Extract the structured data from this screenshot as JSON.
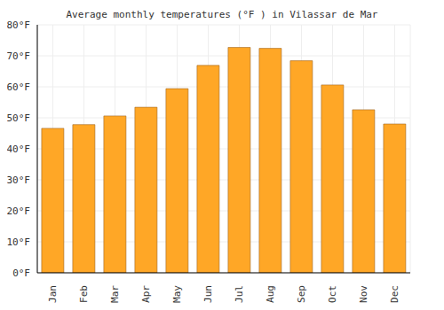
{
  "chart_data": {
    "type": "bar",
    "title": "Average monthly temperatures (°F ) in Vilassar de Mar",
    "categories": [
      "Jan",
      "Feb",
      "Mar",
      "Apr",
      "May",
      "Jun",
      "Jul",
      "Aug",
      "Sep",
      "Oct",
      "Nov",
      "Dec"
    ],
    "values": [
      46.6,
      47.8,
      50.6,
      53.4,
      59.4,
      66.9,
      72.7,
      72.4,
      68.4,
      60.6,
      52.6,
      48.0
    ],
    "color": "#ffa726",
    "ylim": [
      0,
      80
    ],
    "yticks": [
      {
        "value": 0,
        "label": "0°F"
      },
      {
        "value": 10,
        "label": "10°F"
      },
      {
        "value": 20,
        "label": "20°F"
      },
      {
        "value": 30,
        "label": "30°F"
      },
      {
        "value": 40,
        "label": "40°F"
      },
      {
        "value": 50,
        "label": "50°F"
      },
      {
        "value": 60,
        "label": "60°F"
      },
      {
        "value": 70,
        "label": "70°F"
      },
      {
        "value": 80,
        "label": "80°F"
      }
    ],
    "grid": true
  }
}
